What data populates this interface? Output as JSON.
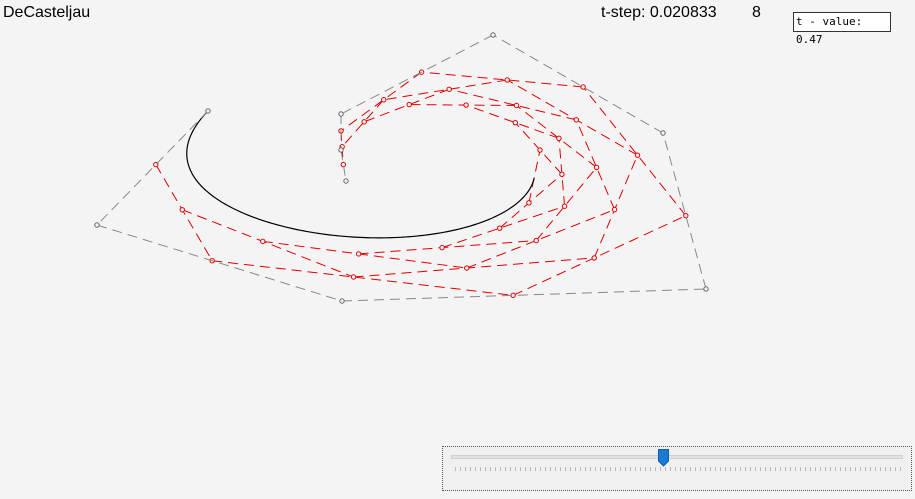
{
  "app": {
    "title": "DeCasteljau"
  },
  "status": {
    "t_step_text": "t-step: 0.020833",
    "degree_text": "8"
  },
  "t_value_field": {
    "value": "t - value: 0.47"
  },
  "slider": {
    "value": 0.47,
    "min": 0,
    "max": 1
  },
  "colors": {
    "background": "#f4f4f4",
    "control_polygon": "#888888",
    "construction": "#e00000",
    "curve": "#000000",
    "slider_thumb": "#1a7ad4"
  }
}
